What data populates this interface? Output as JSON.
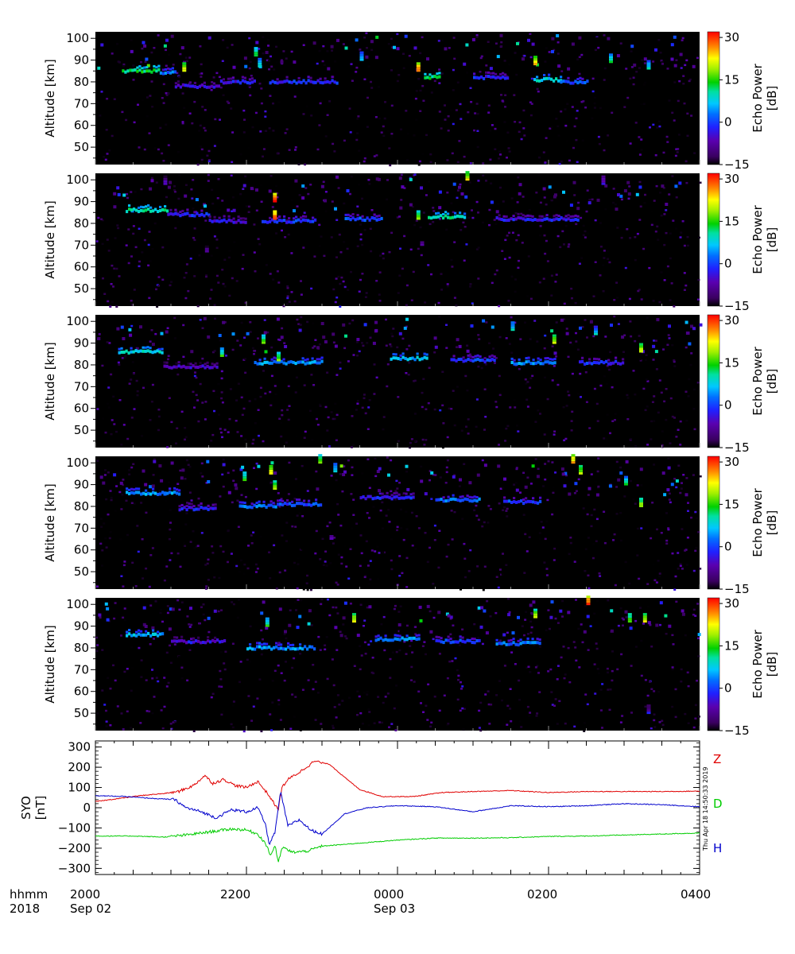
{
  "chart_data": [
    {
      "type": "heatmap",
      "panel": 1,
      "ylabel": "Altitude [km]",
      "yticks": [
        50,
        60,
        70,
        80,
        90,
        100
      ],
      "ylim": [
        42,
        103
      ],
      "colorbar_label_1": "Echo Power",
      "colorbar_label_2": "[dB]",
      "cticks": [
        -15,
        0,
        15,
        30
      ],
      "clim": [
        -15,
        32
      ],
      "echo_layers": [
        {
          "t_start": 0.35,
          "t_end": 0.85,
          "alt": 85,
          "power": 12
        },
        {
          "t_start": 0.85,
          "t_end": 1.05,
          "alt": 84,
          "power": 2
        },
        {
          "t_start": 1.05,
          "t_end": 1.65,
          "alt": 78,
          "power": -5
        },
        {
          "t_start": 1.65,
          "t_end": 2.1,
          "alt": 80,
          "power": -3
        },
        {
          "t_start": 2.3,
          "t_end": 3.2,
          "alt": 80,
          "power": -2
        },
        {
          "t_start": 4.35,
          "t_end": 4.55,
          "alt": 82,
          "power": 12
        },
        {
          "t_start": 5.0,
          "t_end": 5.45,
          "alt": 82,
          "power": -2
        },
        {
          "t_start": 5.8,
          "t_end": 6.15,
          "alt": 81,
          "power": 8
        },
        {
          "t_start": 6.15,
          "t_end": 6.5,
          "alt": 80,
          "power": 0
        }
      ],
      "echo_spots": [
        {
          "t": 1.15,
          "alt": 85,
          "power": 22
        },
        {
          "t": 2.1,
          "alt": 92,
          "power": 14
        },
        {
          "t": 2.15,
          "alt": 87,
          "power": 10
        },
        {
          "t": 3.5,
          "alt": 90,
          "power": 8
        },
        {
          "t": 4.25,
          "alt": 85,
          "power": 28
        },
        {
          "t": 5.8,
          "alt": 88,
          "power": 24
        },
        {
          "t": 6.8,
          "alt": 89,
          "power": 12
        },
        {
          "t": 7.3,
          "alt": 86,
          "power": 10
        }
      ]
    },
    {
      "type": "heatmap",
      "panel": 2,
      "ylabel": "Altitude [km]",
      "yticks": [
        50,
        60,
        70,
        80,
        90,
        100
      ],
      "ylim": [
        42,
        103
      ],
      "colorbar_label_1": "Echo Power",
      "colorbar_label_2": "[dB]",
      "cticks": [
        -15,
        0,
        15,
        30
      ],
      "clim": [
        -15,
        32
      ],
      "echo_layers": [
        {
          "t_start": 0.4,
          "t_end": 0.95,
          "alt": 86,
          "power": 10
        },
        {
          "t_start": 0.95,
          "t_end": 1.5,
          "alt": 84,
          "power": -2
        },
        {
          "t_start": 1.5,
          "t_end": 2.0,
          "alt": 81,
          "power": -4
        },
        {
          "t_start": 2.2,
          "t_end": 2.9,
          "alt": 81,
          "power": -1
        },
        {
          "t_start": 3.3,
          "t_end": 3.8,
          "alt": 82,
          "power": 0
        },
        {
          "t_start": 4.4,
          "t_end": 4.9,
          "alt": 83,
          "power": 10
        },
        {
          "t_start": 5.3,
          "t_end": 6.4,
          "alt": 82,
          "power": -3
        }
      ],
      "echo_spots": [
        {
          "t": 2.35,
          "alt": 90,
          "power": 32
        },
        {
          "t": 2.35,
          "alt": 82,
          "power": 30
        },
        {
          "t": 0.9,
          "alt": 98,
          "power": -4
        },
        {
          "t": 4.3,
          "alt": 70,
          "power": -8
        },
        {
          "t": 1.45,
          "alt": 67,
          "power": -8
        },
        {
          "t": 4.9,
          "alt": 100,
          "power": 22
        },
        {
          "t": 6.7,
          "alt": 98,
          "power": -2
        },
        {
          "t": 4.25,
          "alt": 82,
          "power": 18
        }
      ]
    },
    {
      "type": "heatmap",
      "panel": 3,
      "ylabel": "Altitude [km]",
      "yticks": [
        50,
        60,
        70,
        80,
        90,
        100
      ],
      "ylim": [
        42,
        103
      ],
      "colorbar_label_1": "Echo Power",
      "colorbar_label_2": "[dB]",
      "cticks": [
        -15,
        0,
        15,
        30
      ],
      "clim": [
        -15,
        32
      ],
      "echo_layers": [
        {
          "t_start": 0.3,
          "t_end": 0.9,
          "alt": 86,
          "power": 8
        },
        {
          "t_start": 0.9,
          "t_end": 1.6,
          "alt": 79,
          "power": -6
        },
        {
          "t_start": 2.1,
          "t_end": 3.0,
          "alt": 81,
          "power": 4
        },
        {
          "t_start": 3.9,
          "t_end": 4.4,
          "alt": 83,
          "power": 6
        },
        {
          "t_start": 4.7,
          "t_end": 5.3,
          "alt": 82,
          "power": -1
        },
        {
          "t_start": 5.5,
          "t_end": 6.1,
          "alt": 81,
          "power": 4
        },
        {
          "t_start": 6.4,
          "t_end": 7.0,
          "alt": 81,
          "power": -2
        }
      ],
      "echo_spots": [
        {
          "t": 1.65,
          "alt": 84,
          "power": 14
        },
        {
          "t": 2.2,
          "alt": 90,
          "power": 16
        },
        {
          "t": 2.4,
          "alt": 82,
          "power": 18
        },
        {
          "t": 5.5,
          "alt": 96,
          "power": 10
        },
        {
          "t": 6.05,
          "alt": 90,
          "power": 20
        },
        {
          "t": 6.6,
          "alt": 94,
          "power": 8
        },
        {
          "t": 7.2,
          "alt": 86,
          "power": 22
        }
      ]
    },
    {
      "type": "heatmap",
      "panel": 4,
      "ylabel": "Altitude [km]",
      "yticks": [
        50,
        60,
        70,
        80,
        90,
        100
      ],
      "ylim": [
        42,
        103
      ],
      "colorbar_label_1": "Echo Power",
      "colorbar_label_2": "[dB]",
      "cticks": [
        -15,
        0,
        15,
        30
      ],
      "clim": [
        -15,
        32
      ],
      "echo_layers": [
        {
          "t_start": 0.4,
          "t_end": 1.1,
          "alt": 86,
          "power": 4
        },
        {
          "t_start": 1.1,
          "t_end": 1.6,
          "alt": 79,
          "power": -3
        },
        {
          "t_start": 1.9,
          "t_end": 2.4,
          "alt": 80,
          "power": 2
        },
        {
          "t_start": 2.4,
          "t_end": 3.0,
          "alt": 81,
          "power": 0
        },
        {
          "t_start": 3.5,
          "t_end": 4.2,
          "alt": 84,
          "power": -2
        },
        {
          "t_start": 4.5,
          "t_end": 5.1,
          "alt": 83,
          "power": 2
        },
        {
          "t_start": 5.4,
          "t_end": 5.9,
          "alt": 82,
          "power": 0
        }
      ],
      "echo_spots": [
        {
          "t": 1.95,
          "alt": 92,
          "power": 16
        },
        {
          "t": 2.3,
          "alt": 95,
          "power": 24
        },
        {
          "t": 2.35,
          "alt": 88,
          "power": 20
        },
        {
          "t": 2.95,
          "alt": 100,
          "power": 18
        },
        {
          "t": 3.15,
          "alt": 96,
          "power": 10
        },
        {
          "t": 3.1,
          "alt": 65,
          "power": -8
        },
        {
          "t": 6.3,
          "alt": 100,
          "power": 26
        },
        {
          "t": 6.4,
          "alt": 95,
          "power": 20
        },
        {
          "t": 7.0,
          "alt": 90,
          "power": 12
        },
        {
          "t": 7.2,
          "alt": 80,
          "power": 20
        }
      ]
    },
    {
      "type": "heatmap",
      "panel": 5,
      "ylabel": "Altitude [km]",
      "yticks": [
        50,
        60,
        70,
        80,
        90,
        100
      ],
      "ylim": [
        42,
        103
      ],
      "colorbar_label_1": "Echo Power",
      "colorbar_label_2": "[dB]",
      "cticks": [
        -15,
        0,
        15,
        30
      ],
      "clim": [
        -15,
        32
      ],
      "echo_layers": [
        {
          "t_start": 0.4,
          "t_end": 0.9,
          "alt": 86,
          "power": 6
        },
        {
          "t_start": 1.0,
          "t_end": 1.7,
          "alt": 83,
          "power": -4
        },
        {
          "t_start": 2.0,
          "t_end": 2.9,
          "alt": 80,
          "power": 4
        },
        {
          "t_start": 3.7,
          "t_end": 4.3,
          "alt": 84,
          "power": 4
        },
        {
          "t_start": 4.5,
          "t_end": 5.1,
          "alt": 83,
          "power": 0
        },
        {
          "t_start": 5.3,
          "t_end": 5.9,
          "alt": 82,
          "power": 2
        }
      ],
      "echo_spots": [
        {
          "t": 2.25,
          "alt": 90,
          "power": 14
        },
        {
          "t": 3.4,
          "alt": 92,
          "power": 22
        },
        {
          "t": 5.8,
          "alt": 94,
          "power": 20
        },
        {
          "t": 6.5,
          "alt": 100,
          "power": 30
        },
        {
          "t": 7.05,
          "alt": 92,
          "power": 18
        },
        {
          "t": 7.25,
          "alt": 92,
          "power": 22
        },
        {
          "t": 7.3,
          "alt": 50,
          "power": -4
        }
      ]
    },
    {
      "type": "line",
      "panel": 6,
      "ylabel_1": "SYO",
      "ylabel_2": "[nT]",
      "ylim": [
        -330,
        330
      ],
      "yticks": [
        -300,
        -200,
        -100,
        0,
        100,
        200,
        300
      ],
      "x_range_hours": [
        0,
        8
      ],
      "series": [
        {
          "name": "Z",
          "color": "#e00000",
          "x": [
            0,
            0.3,
            0.6,
            0.9,
            1.1,
            1.3,
            1.45,
            1.55,
            1.7,
            1.85,
            2.0,
            2.15,
            2.3,
            2.42,
            2.47,
            2.55,
            2.7,
            2.9,
            3.1,
            3.3,
            3.5,
            3.8,
            4.2,
            4.6,
            5.0,
            5.5,
            6.0,
            6.5,
            7.0,
            7.5,
            8.0
          ],
          "values": [
            30,
            45,
            60,
            70,
            80,
            110,
            160,
            120,
            140,
            110,
            100,
            130,
            60,
            -10,
            100,
            140,
            175,
            230,
            215,
            150,
            90,
            55,
            55,
            75,
            80,
            85,
            75,
            80,
            80,
            80,
            82
          ]
        },
        {
          "name": "D",
          "color": "#00cc00",
          "x": [
            0,
            0.5,
            0.9,
            1.2,
            1.5,
            1.8,
            2.0,
            2.15,
            2.25,
            2.32,
            2.38,
            2.42,
            2.48,
            2.6,
            2.8,
            3.0,
            3.5,
            4.0,
            4.5,
            5.0,
            5.5,
            6.0,
            6.5,
            7.0,
            7.5,
            8.0
          ],
          "values": [
            -140,
            -140,
            -145,
            -135,
            -120,
            -105,
            -110,
            -130,
            -175,
            -235,
            -185,
            -270,
            -195,
            -220,
            -215,
            -190,
            -175,
            -160,
            -150,
            -150,
            -148,
            -142,
            -140,
            -135,
            -130,
            -125
          ]
        },
        {
          "name": "H",
          "color": "#0000cc",
          "x": [
            0,
            0.4,
            0.8,
            1.05,
            1.2,
            1.4,
            1.6,
            1.8,
            2.0,
            2.15,
            2.25,
            2.3,
            2.38,
            2.45,
            2.55,
            2.7,
            2.85,
            3.0,
            3.3,
            3.6,
            4.0,
            4.5,
            5.0,
            5.5,
            6.0,
            6.5,
            7.0,
            7.5,
            8.0
          ],
          "values": [
            60,
            55,
            45,
            40,
            0,
            -20,
            -50,
            -10,
            -20,
            0,
            -80,
            -180,
            -120,
            80,
            -90,
            -60,
            -110,
            -130,
            -30,
            0,
            10,
            5,
            -20,
            10,
            5,
            10,
            20,
            15,
            5
          ]
        }
      ],
      "legend": [
        "Z",
        "D",
        "H"
      ]
    }
  ],
  "time_axis": {
    "header_label": "hhmm",
    "year": "2018",
    "tick_labels": [
      "2000",
      "2200",
      "0000",
      "0200",
      "0400"
    ],
    "date_labels": [
      "Sep 02",
      "Sep 03"
    ]
  },
  "timestamp": "Thu Apr 18 14:50:33 2019",
  "colors": {
    "z": "#e00000",
    "d": "#00cc00",
    "h": "#0000cc",
    "background": "#000000"
  }
}
